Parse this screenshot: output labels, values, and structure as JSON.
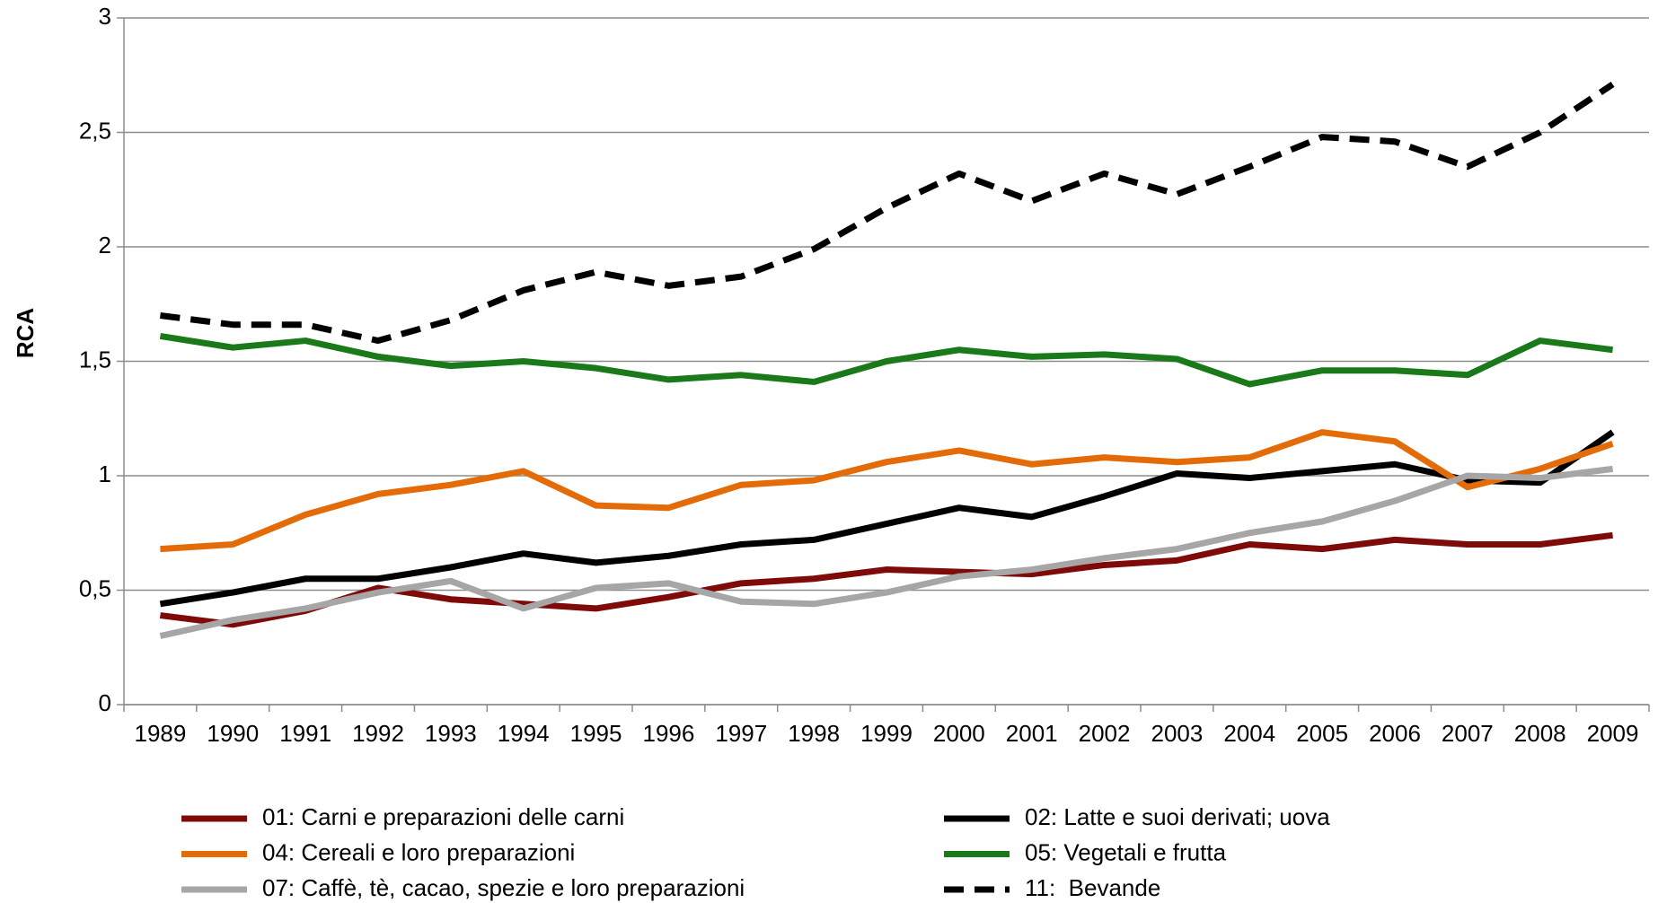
{
  "chart_data": {
    "type": "line",
    "y_label": "RCA",
    "categories": [
      "1989",
      "1990",
      "1991",
      "1992",
      "1993",
      "1994",
      "1995",
      "1996",
      "1997",
      "1998",
      "1999",
      "2000",
      "2001",
      "2002",
      "2003",
      "2004",
      "2005",
      "2006",
      "2007",
      "2008",
      "2009"
    ],
    "ylim": [
      0,
      3
    ],
    "yticks": [
      0,
      {
        "value": 0.5,
        "label": "0,5"
      },
      1,
      {
        "value": 1.5,
        "label": "1,5"
      },
      2,
      {
        "value": 2.5,
        "label": "2,5"
      },
      3
    ],
    "grid": true,
    "legend": "bottom",
    "series": [
      {
        "name": "01: Carni e preparazioni delle carni",
        "color": "#7f0a0a",
        "line_style": "solid",
        "values": [
          0.39,
          0.35,
          0.41,
          0.51,
          0.46,
          0.44,
          0.42,
          0.47,
          0.53,
          0.55,
          0.59,
          0.58,
          0.57,
          0.61,
          0.63,
          0.7,
          0.68,
          0.72,
          0.7,
          0.7,
          0.74
        ]
      },
      {
        "name": "02: Latte e suoi derivati; uova",
        "color": "#000000",
        "line_style": "solid",
        "values": [
          0.44,
          0.49,
          0.55,
          0.55,
          0.6,
          0.66,
          0.62,
          0.65,
          0.7,
          0.72,
          0.79,
          0.86,
          0.82,
          0.91,
          1.01,
          0.99,
          1.02,
          1.05,
          0.98,
          0.97,
          1.19
        ]
      },
      {
        "name": "04: Cereali e loro preparazioni",
        "color": "#e36c09",
        "line_style": "solid",
        "values": [
          0.68,
          0.7,
          0.83,
          0.92,
          0.96,
          1.02,
          0.87,
          0.86,
          0.96,
          0.98,
          1.06,
          1.11,
          1.05,
          1.08,
          1.06,
          1.08,
          1.19,
          1.15,
          0.95,
          1.03,
          1.14
        ]
      },
      {
        "name": "05: Vegetali e frutta",
        "color": "#1a7a1a",
        "line_style": "solid",
        "values": [
          1.61,
          1.56,
          1.59,
          1.52,
          1.48,
          1.5,
          1.47,
          1.42,
          1.44,
          1.41,
          1.5,
          1.55,
          1.52,
          1.53,
          1.51,
          1.4,
          1.46,
          1.46,
          1.44,
          1.59,
          1.55
        ]
      },
      {
        "name": "07: Caffè, tè, cacao, spezie e loro preparazioni",
        "color": "#a6a6a6",
        "line_style": "solid",
        "values": [
          0.3,
          0.37,
          0.42,
          0.49,
          0.54,
          0.42,
          0.51,
          0.53,
          0.45,
          0.44,
          0.49,
          0.56,
          0.59,
          0.64,
          0.68,
          0.75,
          0.8,
          0.89,
          1.0,
          0.99,
          1.03
        ]
      },
      {
        "name": "11:  Bevande",
        "color": "#000000",
        "line_style": "dashed",
        "values": [
          1.7,
          1.66,
          1.66,
          1.59,
          1.68,
          1.81,
          1.89,
          1.83,
          1.87,
          1.99,
          2.17,
          2.32,
          2.2,
          2.32,
          2.23,
          2.35,
          2.48,
          2.46,
          2.35,
          2.5,
          2.71
        ]
      }
    ]
  }
}
